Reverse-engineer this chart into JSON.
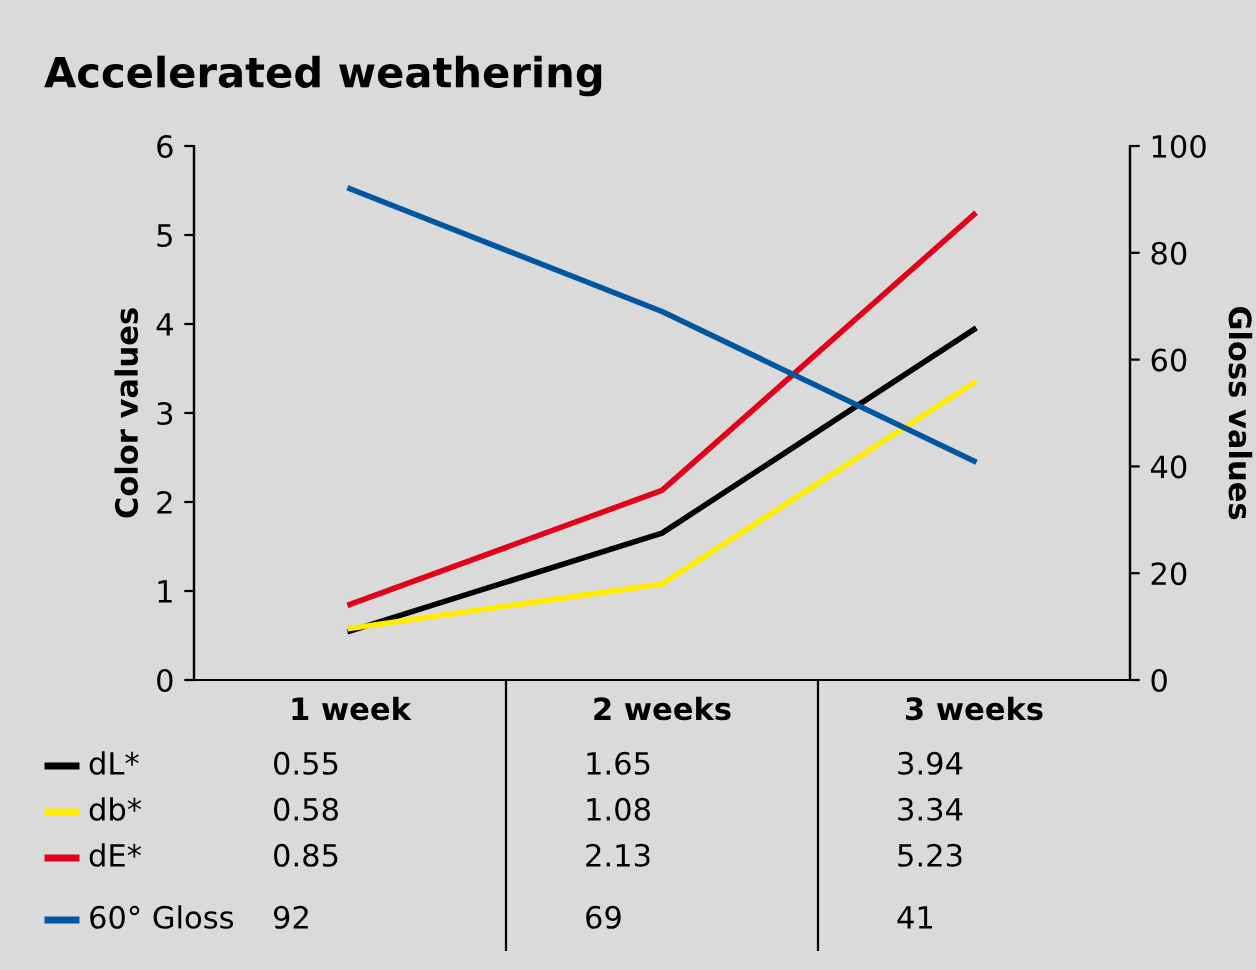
{
  "chart_data": {
    "type": "line",
    "title": "Accelerated weathering",
    "ylabel": "Color values",
    "y2label": "Gloss values",
    "categories": [
      "1 week",
      "2 weeks",
      "3 weeks"
    ],
    "series": [
      {
        "name": "dL*",
        "color": "#000000",
        "values": [
          0.55,
          1.65,
          3.94
        ]
      },
      {
        "name": "db*",
        "color": "#ffed00",
        "values": [
          0.58,
          1.08,
          3.34
        ]
      },
      {
        "name": "dE*",
        "color": "#e2001a",
        "values": [
          0.85,
          2.13,
          5.23
        ]
      },
      {
        "name": "60° Gloss",
        "color": "#0057a0",
        "values": [
          92,
          69,
          41
        ],
        "axis": "y2"
      }
    ],
    "ylim": [
      0,
      6
    ],
    "yticks": [
      0,
      1,
      2,
      3,
      4,
      5,
      6
    ],
    "y2lim": [
      0,
      100
    ],
    "y2ticks": [
      0,
      20,
      40,
      60,
      80,
      100
    ],
    "data_labels": true,
    "legend": "bottom",
    "grid": false,
    "marker": "none",
    "line_style": "solid"
  }
}
